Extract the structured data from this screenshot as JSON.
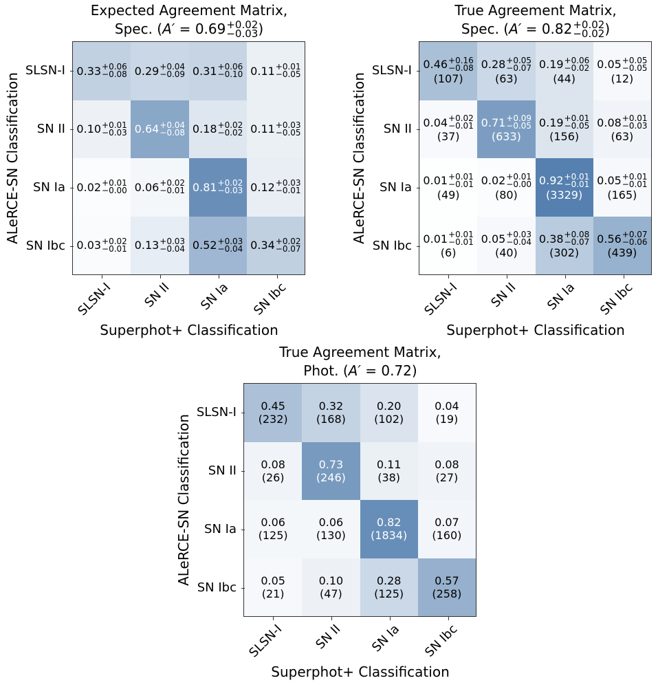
{
  "chart_data": [
    {
      "type": "heatmap",
      "title_line1": "Expected Agreement Matrix,",
      "title_prefix": "Spec. (",
      "agreement_symbol": "A′",
      "agreement": "0.69",
      "agreement_plus": "+0.02",
      "agreement_minus": "−0.03",
      "title_suffix": ")",
      "xlabel": "Superphot+ Classification",
      "ylabel": "ALeRCE-SN Classification",
      "x_categories": [
        "SLSN-I",
        "SN II",
        "SN Ia",
        "SN Ibc"
      ],
      "y_categories": [
        "SLSN-I",
        "SN II",
        "SN Ia",
        "SN Ibc"
      ],
      "values": [
        [
          0.33,
          0.29,
          0.31,
          0.11
        ],
        [
          0.1,
          0.64,
          0.18,
          0.11
        ],
        [
          0.02,
          0.06,
          0.81,
          0.12
        ],
        [
          0.03,
          0.13,
          0.52,
          0.34
        ]
      ],
      "err_plus": [
        [
          "+0.06",
          "+0.04",
          "+0.06",
          "+0.01"
        ],
        [
          "+0.01",
          "+0.04",
          "+0.02",
          "+0.03"
        ],
        [
          "+0.01",
          "+0.02",
          "+0.02",
          "+0.03"
        ],
        [
          "+0.02",
          "+0.03",
          "+0.03",
          "+0.02"
        ]
      ],
      "err_minus": [
        [
          "−0.08",
          "−0.09",
          "−0.10",
          "−0.05"
        ],
        [
          "−0.03",
          "−0.08",
          "−0.02",
          "−0.05"
        ],
        [
          "−0.00",
          "−0.01",
          "−0.03",
          "−0.01"
        ],
        [
          "−0.01",
          "−0.04",
          "−0.04",
          "−0.07"
        ]
      ]
    },
    {
      "type": "heatmap",
      "title_line1": "True Agreement Matrix,",
      "title_prefix": "Spec. (",
      "agreement_symbol": "A′",
      "agreement": "0.82",
      "agreement_plus": "+0.02",
      "agreement_minus": "−0.02",
      "title_suffix": ")",
      "xlabel": "Superphot+ Classification",
      "ylabel": "ALeRCE-SN Classification",
      "x_categories": [
        "SLSN-I",
        "SN II",
        "SN Ia",
        "SN Ibc"
      ],
      "y_categories": [
        "SLSN-I",
        "SN II",
        "SN Ia",
        "SN Ibc"
      ],
      "values": [
        [
          0.46,
          0.28,
          0.19,
          0.05
        ],
        [
          0.04,
          0.71,
          0.19,
          0.08
        ],
        [
          0.01,
          0.02,
          0.92,
          0.05
        ],
        [
          0.01,
          0.05,
          0.38,
          0.56
        ]
      ],
      "err_plus": [
        [
          "+0.16",
          "+0.05",
          "+0.06",
          "+0.05"
        ],
        [
          "+0.02",
          "+0.09",
          "+0.01",
          "+0.01"
        ],
        [
          "+0.01",
          "+0.01",
          "+0.01",
          "+0.01"
        ],
        [
          "+0.01",
          "+0.03",
          "+0.08",
          "+0.07"
        ]
      ],
      "err_minus": [
        [
          "−0.08",
          "−0.07",
          "−0.02",
          "−0.05"
        ],
        [
          "−0.01",
          "−0.05",
          "−0.05",
          "−0.03"
        ],
        [
          "−0.01",
          "−0.00",
          "−0.01",
          "−0.01"
        ],
        [
          "−0.01",
          "−0.04",
          "−0.07",
          "−0.06"
        ]
      ],
      "counts": [
        [
          "(107)",
          "(63)",
          "(44)",
          "(12)"
        ],
        [
          "(37)",
          "(633)",
          "(156)",
          "(63)"
        ],
        [
          "(49)",
          "(80)",
          "(3329)",
          "(165)"
        ],
        [
          "(6)",
          "(40)",
          "(302)",
          "(439)"
        ]
      ]
    },
    {
      "type": "heatmap",
      "title_line1": "True Agreement Matrix,",
      "title_prefix": "Phot. (",
      "agreement_symbol": "A′",
      "agreement": "0.72",
      "title_suffix": ")",
      "xlabel": "Superphot+ Classification",
      "ylabel": "ALeRCE-SN Classification",
      "x_categories": [
        "SLSN-I",
        "SN II",
        "SN Ia",
        "SN Ibc"
      ],
      "y_categories": [
        "SLSN-I",
        "SN II",
        "SN Ia",
        "SN Ibc"
      ],
      "values": [
        [
          0.45,
          0.32,
          0.2,
          0.04
        ],
        [
          0.08,
          0.73,
          0.11,
          0.08
        ],
        [
          0.06,
          0.06,
          0.82,
          0.07
        ],
        [
          0.05,
          0.1,
          0.28,
          0.57
        ]
      ],
      "counts": [
        [
          "(232)",
          "(168)",
          "(102)",
          "(19)"
        ],
        [
          "(26)",
          "(246)",
          "(38)",
          "(27)"
        ],
        [
          "(125)",
          "(130)",
          "(1834)",
          "(160)"
        ],
        [
          "(21)",
          "(47)",
          "(125)",
          "(258)"
        ]
      ]
    }
  ],
  "colormap": {
    "low": "#ffffff",
    "high": "#4675a8"
  }
}
